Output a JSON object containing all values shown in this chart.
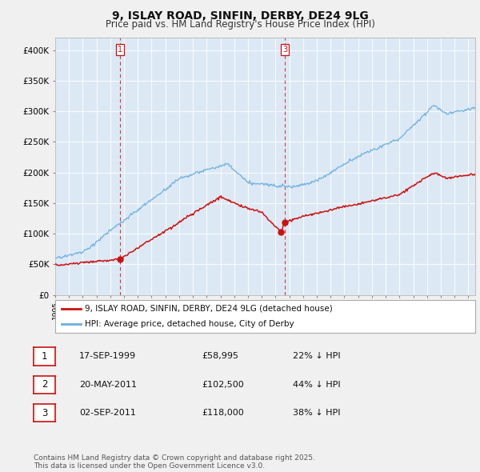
{
  "title": "9, ISLAY ROAD, SINFIN, DERBY, DE24 9LG",
  "subtitle": "Price paid vs. HM Land Registry's House Price Index (HPI)",
  "background_color": "#f0f0f0",
  "plot_bg_color": "#dce9f5",
  "grid_color": "#ffffff",
  "hpi_color": "#6aaee0",
  "price_color": "#cc1111",
  "ylim": [
    0,
    420000
  ],
  "yticks": [
    0,
    50000,
    100000,
    150000,
    200000,
    250000,
    300000,
    350000,
    400000
  ],
  "ytick_labels": [
    "£0",
    "£50K",
    "£100K",
    "£150K",
    "£200K",
    "£250K",
    "£300K",
    "£350K",
    "£400K"
  ],
  "sale_dates": [
    1999.72,
    2011.38,
    2011.67
  ],
  "sale_prices": [
    58995,
    102500,
    118000
  ],
  "sale_labels": [
    "1",
    "2",
    "3"
  ],
  "vline_sales": [
    0,
    2
  ],
  "vline_labels": [
    "1",
    "3"
  ],
  "legend_entries": [
    "9, ISLAY ROAD, SINFIN, DERBY, DE24 9LG (detached house)",
    "HPI: Average price, detached house, City of Derby"
  ],
  "table_rows": [
    [
      "1",
      "17-SEP-1999",
      "£58,995",
      "22% ↓ HPI"
    ],
    [
      "2",
      "20-MAY-2011",
      "£102,500",
      "44% ↓ HPI"
    ],
    [
      "3",
      "02-SEP-2011",
      "£118,000",
      "38% ↓ HPI"
    ]
  ],
  "footnote": "Contains HM Land Registry data © Crown copyright and database right 2025.\nThis data is licensed under the Open Government Licence v3.0.",
  "title_fontsize": 10,
  "subtitle_fontsize": 8.5,
  "tick_fontsize": 7.5,
  "legend_fontsize": 8
}
